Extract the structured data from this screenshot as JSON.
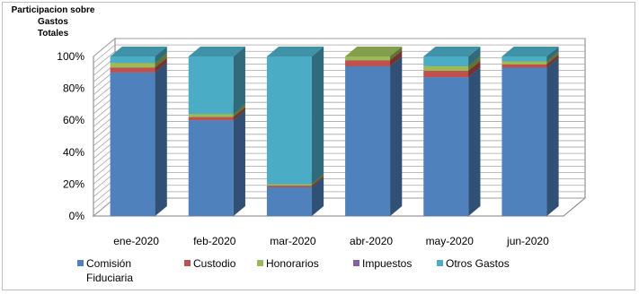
{
  "chart_data": {
    "type": "bar",
    "stacked": true,
    "percent": true,
    "three_d": true,
    "title": "Participacion sobre Gastos Totales",
    "title_lines": [
      "Participacion sobre Gastos",
      "Totales"
    ],
    "xlabel": "",
    "ylabel": "",
    "ylim": [
      0,
      100
    ],
    "yticks": [
      "0%",
      "20%",
      "40%",
      "60%",
      "80%",
      "100%"
    ],
    "grid": true,
    "legend_position": "bottom",
    "categories": [
      "ene-2020",
      "feb-2020",
      "mar-2020",
      "abr-2020",
      "may-2020",
      "jun-2020"
    ],
    "series": [
      {
        "name": "Comisión Fiduciaria",
        "legend_lines": [
          "Comisión",
          "Fiduciaria"
        ],
        "color": "#4f81bd",
        "values": [
          90,
          60,
          18,
          76,
          87,
          93
        ]
      },
      {
        "name": "Custodio",
        "legend_lines": [
          "Custodio"
        ],
        "color": "#c0504d",
        "values": [
          3,
          2,
          1,
          3,
          4,
          2
        ]
      },
      {
        "name": "Honorarios",
        "legend_lines": [
          "Honorarios"
        ],
        "color": "#9bbb59",
        "values": [
          3,
          2,
          1,
          2,
          3,
          2
        ]
      },
      {
        "name": "Impuestos",
        "legend_lines": [
          "Impuestos"
        ],
        "color": "#8064a2",
        "values": [
          0,
          0,
          0,
          0,
          0,
          0
        ]
      },
      {
        "name": "Otros Gastos",
        "legend_lines": [
          "Otros Gastos"
        ],
        "color": "#4bacc6",
        "values": [
          4,
          36,
          80,
          0,
          6,
          3
        ]
      }
    ]
  }
}
